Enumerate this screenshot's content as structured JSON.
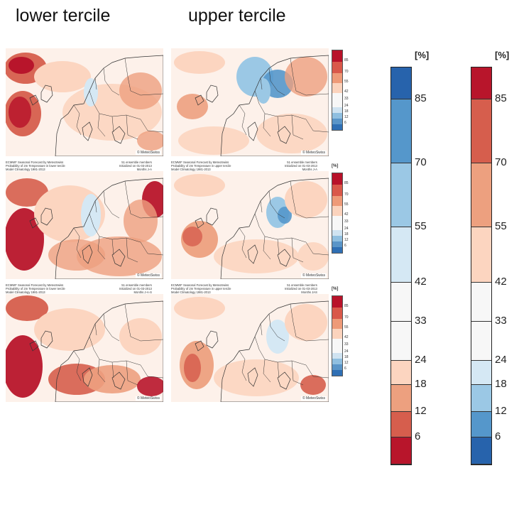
{
  "headers": {
    "lower": "lower tercile",
    "upper": "upper tercile"
  },
  "watermark": "© MeteoSwiss",
  "panel_unit": "[%]",
  "rows": [
    {
      "lower_caption": "ECMWF Seasonal Forecast by MeteoSwiss\nProbability of 2m Temperature in lower tercile\nModel Climatology 1981-2013",
      "lower_right": "51 ensemble members\nInitialized on 01-03-2013\nMonths M-J",
      "upper_caption": "ECMWF Seasonal Forecast by MeteoSwiss\nProbability of 2m Temperature in upper tercile\nModel Climatology 1981-2013",
      "upper_right": "51 ensemble members\nInitialized on 01-03-2013\nMonths M-J"
    },
    {
      "lower_caption": "ECMWF Seasonal Forecast by MeteoSwiss\nProbability of 2m Temperature in lower tercile\nModel Climatology 1981-2013",
      "lower_right": "51 ensemble members\nInitialized on 01-03-2013\nMonths J-A",
      "upper_caption": "ECMWF Seasonal Forecast by MeteoSwiss\nProbability of 2m Temperature in upper tercile\nModel Climatology 1981-2013",
      "upper_right": "51 ensemble members\nInitialized on 01-03-2013\nMonths J-A"
    },
    {
      "lower_caption": "ECMWF Seasonal Forecast by MeteoSwiss\nProbability of 2m Temperature in lower tercile\nModel Climatology 1981-2013",
      "lower_right": "51 ensemble members\nInitialized on 01-03-2013\nMonths J-A-S",
      "upper_caption": "ECMWF Seasonal Forecast by MeteoSwiss\nProbability of 2m Temperature in upper tercile\nModel Climatology 1981-2013",
      "upper_right": "51 ensemble members\nInitialized on 01-03-2013\nMonths JAS"
    }
  ],
  "mini_legend": {
    "labels": [
      "85",
      "70",
      "55",
      "42",
      "33",
      "24",
      "18",
      "12",
      "6"
    ],
    "colors": [
      "#b8122a",
      "#d9584a",
      "#ee9a78",
      "#fbd3bd",
      "#f7f7f7",
      "#f7f7f7",
      "#cfe3f1",
      "#8fbfe0",
      "#2f6fb4"
    ]
  },
  "big_legends": {
    "unit": "[%]",
    "labels": [
      "85",
      "70",
      "55",
      "42",
      "33",
      "24",
      "18",
      "12",
      "6"
    ],
    "blue_colors": [
      "#2763ac",
      "#5597cb",
      "#9bc8e5",
      "#d5e8f4",
      "#f7f7f7",
      "#f7f7f7",
      "#fcd5c0",
      "#eda07f",
      "#d65e4d",
      "#b8152b"
    ],
    "red_colors": [
      "#b8152b",
      "#d65e4d",
      "#eda07f",
      "#fcd5c0",
      "#f7f7f7",
      "#f7f7f7",
      "#d5e8f4",
      "#9bc8e5",
      "#5597cb",
      "#2763ac"
    ]
  }
}
